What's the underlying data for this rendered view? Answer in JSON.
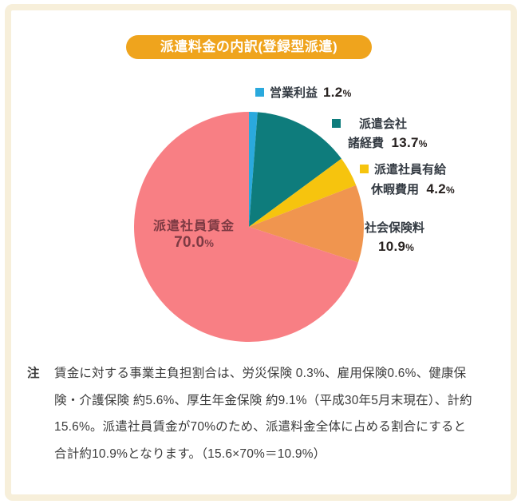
{
  "header": {
    "title": "派遣料金の内訳(登録型派遣)"
  },
  "chart_data": {
    "type": "pie",
    "title": "派遣料金の内訳(登録型派遣)",
    "unit": "%",
    "start_angle_deg": 0,
    "direction": "clockwise",
    "slices": [
      {
        "label": "営業利益",
        "value": 1.2,
        "color": "#2aa9dd"
      },
      {
        "label": "派遣会社諸経費",
        "value": 13.7,
        "color": "#0e7c7c"
      },
      {
        "label": "派遣社員有給休暇費用",
        "value": 4.2,
        "color": "#f6c40e"
      },
      {
        "label": "社会保険料",
        "value": 10.9,
        "color": "#f0954f"
      },
      {
        "label": "派遣社員賃金",
        "value": 70.0,
        "color": "#f87f84"
      }
    ]
  },
  "legend": {
    "operating_profit": {
      "label": "営業利益",
      "value": "1.2",
      "unit": "%"
    },
    "agency_expenses": {
      "line1": "派遣会社",
      "line2": "諸経費",
      "value": "13.7",
      "unit": "%"
    },
    "paid_leave": {
      "line1": "派遣社員有給",
      "line2": "休暇費用",
      "value": "4.2",
      "unit": "%"
    },
    "social_insurance": {
      "line1": "社会保険料",
      "value": "10.9",
      "unit": "%"
    },
    "wages": {
      "line1": "派遣社員賃金",
      "value": "70.0",
      "unit": "%"
    }
  },
  "note": {
    "marker": "注",
    "lines": [
      "賃金に対する事業主負担割合は、労災保険 0.3%、雇用保険0.6%、健康保",
      "険・介護保険 約5.6%、厚生年金保険 約9.1%（平成30年5月末現在）、計約",
      "15.6%。派遣社員賃金が70%のため、派遣料金全体に占める割合にすると",
      "合計約10.9%となります。（15.6×70%＝10.9%）"
    ]
  },
  "colors": {
    "frame_border": "#f7efda",
    "pill_background": "#efa41d",
    "pill_text": "#ffffff",
    "label_text": "#333a42",
    "number_text": "#27211f",
    "pie_label_text": "#7d3a43",
    "note_text": "#3b3b3b"
  }
}
